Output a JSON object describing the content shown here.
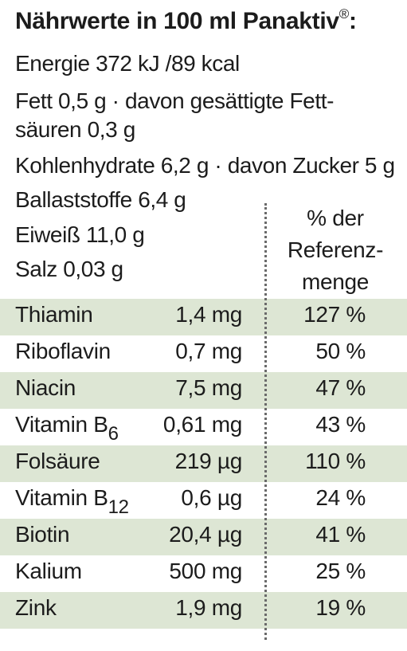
{
  "title": {
    "text": "Nährwerte in 100 ml Panaktiv",
    "mark": "®",
    "colon": ":"
  },
  "nutrients": {
    "energie": "Energie 372 kJ /89 kcal",
    "fett_1": "Fett 0,5 g · davon gesättigte Fett-",
    "fett_2": "säuren 0,3 g",
    "kohlenhydrate": "Kohlenhydrate 6,2 g · davon Zucker 5 g",
    "ballaststoffe": "Ballaststoffe 6,4 g",
    "eiweiss": "Eiweiß 11,0 g",
    "salz": "Salz 0,03 g"
  },
  "reference_header": {
    "line1": "% der",
    "line2": "Referenz-",
    "line3": "menge"
  },
  "vitamins": [
    {
      "name": "Thiamin",
      "sub": "",
      "amount": "1,4 mg",
      "percent": "127 %"
    },
    {
      "name": "Riboflavin",
      "sub": "",
      "amount": "0,7 mg",
      "percent": "50 %"
    },
    {
      "name": "Niacin",
      "sub": "",
      "amount": "7,5 mg",
      "percent": "47 %"
    },
    {
      "name": "Vitamin B",
      "sub": "6",
      "amount": "0,61 mg",
      "percent": "43 %"
    },
    {
      "name": "Folsäure",
      "sub": "",
      "amount": "219 µg",
      "percent": "110 %"
    },
    {
      "name": "Vitamin B",
      "sub": "12",
      "amount": "0,6 µg",
      "percent": "24 %"
    },
    {
      "name": "Biotin",
      "sub": "",
      "amount": "20,4 µg",
      "percent": "41 %"
    },
    {
      "name": "Kalium",
      "sub": "",
      "amount": "500 mg",
      "percent": "25 %"
    },
    {
      "name": "Zink",
      "sub": "",
      "amount": "1,9 mg",
      "percent": "19 %"
    }
  ],
  "colors": {
    "row_shade": "#dde6d4",
    "text": "#1c1c1c",
    "divider": "#6a6a6a"
  }
}
